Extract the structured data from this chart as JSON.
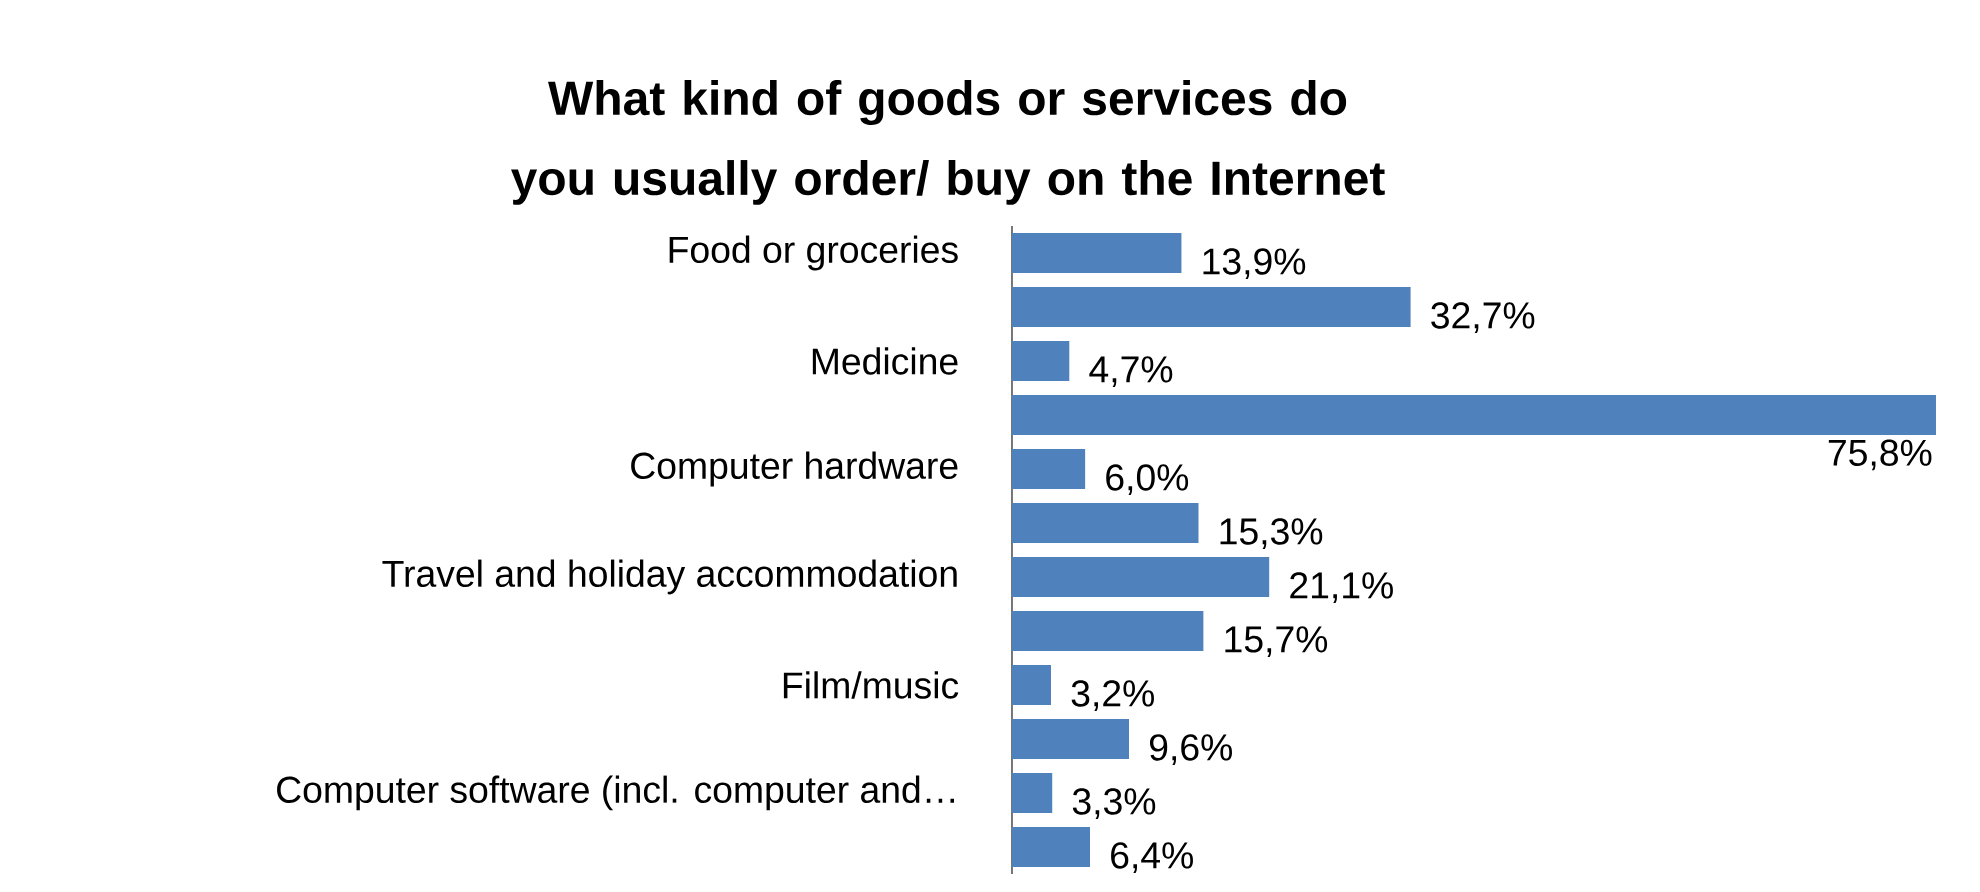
{
  "chart_data": {
    "type": "bar",
    "orientation": "horizontal",
    "title": "What kind of goods or services do you usually order/ buy on the Internet",
    "categories": [
      "Food or groceries",
      null,
      "Medicine",
      null,
      "Computer hardware",
      null,
      "Travel and holiday accommodation",
      null,
      "Film/music",
      null,
      "Computer software (incl. computer and…",
      null
    ],
    "values": [
      13.9,
      32.7,
      4.7,
      75.8,
      6.0,
      15.3,
      21.1,
      15.7,
      3.2,
      9.6,
      3.3,
      6.4
    ],
    "value_labels": [
      "13,9%",
      "32,7%",
      "4,7%",
      "75,8%",
      "6,0%",
      "15,3%",
      "21,1%",
      "15,7%",
      "3,2%",
      "9,6%",
      "3,3%",
      "6,4%"
    ],
    "color": "#4f81bd"
  }
}
